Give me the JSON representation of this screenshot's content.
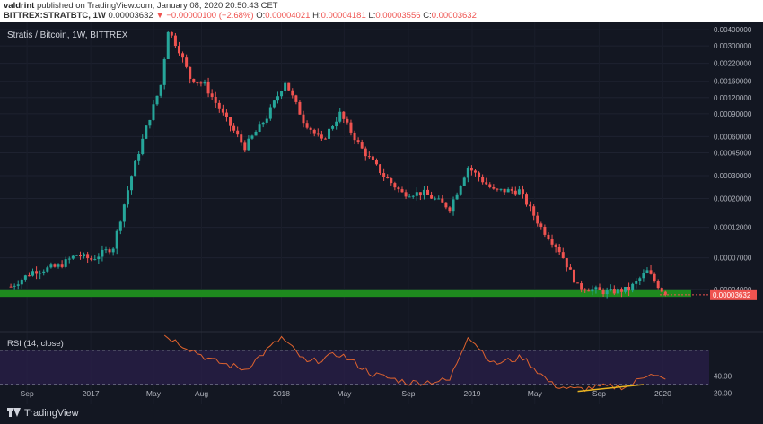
{
  "header": {
    "author": "valdrint",
    "published_text": "published on TradingView.com, January 08, 2020 20:50:43 CET",
    "symbol": "BITTREX:STRATBTC, 1W",
    "last": "0.00003632",
    "change": "▼ −0.00000100 (−2.68%)",
    "open_label": "O:",
    "open": "0.00004021",
    "high_label": "H:",
    "high": "0.00004181",
    "low_label": "L:",
    "low": "0.00003556",
    "close_label": "C:",
    "close": "0.00003632"
  },
  "pane_title": "Stratis / Bitcoin, 1W, BITTREX",
  "rsi_title": "RSI (14, close)",
  "branding": "TradingView",
  "colors": {
    "background": "#131722",
    "up": "#26a69a",
    "down": "#ef5350",
    "support_zone": "#1e8a1e",
    "rsi_line": "#e0632e",
    "rsi_band": "#2a1f4a",
    "trendline": "#e8b422",
    "price_tag": "#ef5350"
  },
  "chart_data": {
    "type": "candlestick",
    "scale": "log",
    "y_ticks": [
      "0.00400000",
      "0.00300000",
      "0.00220000",
      "0.00160000",
      "0.00120000",
      "0.00090000",
      "0.00060000",
      "0.00045000",
      "0.00030000",
      "0.00020000",
      "0.00012000",
      "0.00007000",
      "0.00004000"
    ],
    "x_ticks": [
      "Sep",
      "2017",
      "May",
      "Aug",
      "2018",
      "May",
      "Sep",
      "2019",
      "May",
      "Sep",
      "2020"
    ],
    "last_price_label": "0.00003632",
    "support_zone": [
      3.5e-05,
      4e-05
    ],
    "close_path": [
      {
        "date": "2016-08-01",
        "close": 4.2e-05
      },
      {
        "date": "2016-09-12",
        "close": 5.5e-05
      },
      {
        "date": "2016-10-31",
        "close": 6e-05
      },
      {
        "date": "2016-12-05",
        "close": 7.4e-05
      },
      {
        "date": "2017-01-02",
        "close": 6.8e-05
      },
      {
        "date": "2017-02-13",
        "close": 8.5e-05
      },
      {
        "date": "2017-03-20",
        "close": 0.0003
      },
      {
        "date": "2017-04-17",
        "close": 0.0007
      },
      {
        "date": "2017-05-15",
        "close": 0.0015
      },
      {
        "date": "2017-05-29",
        "close": 0.004
      },
      {
        "date": "2017-06-19",
        "close": 0.0028
      },
      {
        "date": "2017-07-10",
        "close": 0.0017
      },
      {
        "date": "2017-08-07",
        "close": 0.0015
      },
      {
        "date": "2017-09-18",
        "close": 0.0008
      },
      {
        "date": "2017-10-23",
        "close": 0.0005
      },
      {
        "date": "2017-12-04",
        "close": 0.00085
      },
      {
        "date": "2018-01-08",
        "close": 0.0016
      },
      {
        "date": "2018-02-12",
        "close": 0.0008
      },
      {
        "date": "2018-03-19",
        "close": 0.00055
      },
      {
        "date": "2018-04-23",
        "close": 0.0009
      },
      {
        "date": "2018-06-04",
        "close": 0.00048
      },
      {
        "date": "2018-07-16",
        "close": 0.0003
      },
      {
        "date": "2018-08-20",
        "close": 0.00022
      },
      {
        "date": "2018-10-01",
        "close": 0.00022
      },
      {
        "date": "2018-11-19",
        "close": 0.00017
      },
      {
        "date": "2018-12-24",
        "close": 0.00035
      },
      {
        "date": "2019-02-11",
        "close": 0.00023
      },
      {
        "date": "2019-04-01",
        "close": 0.00023
      },
      {
        "date": "2019-05-13",
        "close": 0.00012
      },
      {
        "date": "2019-06-17",
        "close": 8e-05
      },
      {
        "date": "2019-07-22",
        "close": 4.2e-05
      },
      {
        "date": "2019-09-16",
        "close": 3.8e-05
      },
      {
        "date": "2019-10-28",
        "close": 4e-05
      },
      {
        "date": "2019-12-02",
        "close": 5.5e-05
      },
      {
        "date": "2020-01-06",
        "close": 3.632e-05
      }
    ],
    "rsi": {
      "y_ticks": [
        "40.00",
        "20.00"
      ],
      "upper": 70,
      "lower": 30,
      "values": [
        {
          "date": "2017-05-22",
          "rsi": 88
        },
        {
          "date": "2017-07-10",
          "rsi": 72
        },
        {
          "date": "2017-08-21",
          "rsi": 58
        },
        {
          "date": "2017-10-23",
          "rsi": 48
        },
        {
          "date": "2018-01-01",
          "rsi": 85
        },
        {
          "date": "2018-02-19",
          "rsi": 55
        },
        {
          "date": "2018-04-23",
          "rsi": 66
        },
        {
          "date": "2018-06-25",
          "rsi": 42
        },
        {
          "date": "2018-09-03",
          "rsi": 32
        },
        {
          "date": "2018-11-19",
          "rsi": 35
        },
        {
          "date": "2018-12-24",
          "rsi": 88
        },
        {
          "date": "2019-02-11",
          "rsi": 54
        },
        {
          "date": "2019-04-08",
          "rsi": 62
        },
        {
          "date": "2019-06-03",
          "rsi": 30
        },
        {
          "date": "2019-07-15",
          "rsi": 24
        },
        {
          "date": "2019-09-02",
          "rsi": 27
        },
        {
          "date": "2019-10-28",
          "rsi": 28
        },
        {
          "date": "2019-12-09",
          "rsi": 45
        },
        {
          "date": "2020-01-06",
          "rsi": 34
        }
      ],
      "trendline": [
        {
          "date": "2019-07-22",
          "rsi": 22
        },
        {
          "date": "2019-11-25",
          "rsi": 30
        }
      ]
    }
  }
}
